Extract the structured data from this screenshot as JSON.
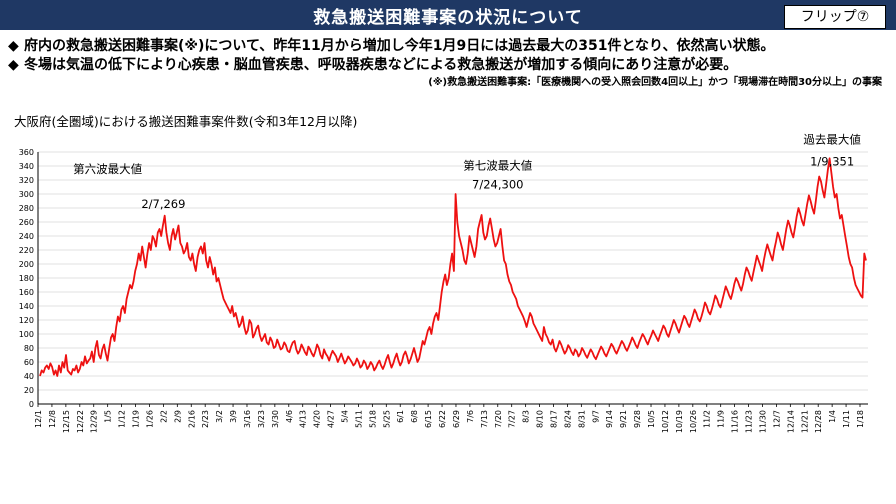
{
  "header": {
    "title": "救急搬送困難事案の状況について",
    "flip_label": "フリップ⑦"
  },
  "bullets": [
    {
      "mark": "◆",
      "text": "府内の救急搬送困難事案(※)について、昨年11月から増加し今年1月9日には過去最大の351件となり、依然高い状態。"
    },
    {
      "mark": "◆",
      "text": "冬場は気温の低下により心疾患・脳血管疾患、呼吸器疾患などによる救急搬送が増加する傾向にあり注意が必要。"
    }
  ],
  "note": "(※)救急搬送困難事案:「医療機関への受入照会回数4回以上」かつ「現場滞在時間30分以上」の事案",
  "chart_data": {
    "type": "line",
    "title": "大阪府(全圏域)における搬送困難事案件数(令和3年12月以降)",
    "ylim": [
      0,
      360
    ],
    "yticks": [
      0,
      20,
      40,
      60,
      80,
      100,
      120,
      140,
      160,
      180,
      200,
      220,
      240,
      260,
      280,
      300,
      320,
      340,
      360
    ],
    "xticks": [
      "12/1",
      "12/8",
      "12/15",
      "12/22",
      "12/29",
      "1/5",
      "1/12",
      "1/19",
      "1/26",
      "2/2",
      "2/9",
      "2/16",
      "2/23",
      "3/2",
      "3/9",
      "3/16",
      "3/23",
      "3/30",
      "4/6",
      "4/13",
      "4/20",
      "4/27",
      "5/4",
      "5/11",
      "5/18",
      "5/25",
      "6/1",
      "6/8",
      "6/15",
      "6/22",
      "6/29",
      "7/6",
      "7/13",
      "7/20",
      "7/27",
      "8/3",
      "8/10",
      "8/17",
      "8/24",
      "8/31",
      "9/7",
      "9/14",
      "9/21",
      "9/28",
      "10/5",
      "10/12",
      "10/19",
      "10/26",
      "11/2",
      "11/9",
      "11/16",
      "11/23",
      "11/30",
      "12/7",
      "12/14",
      "12/21",
      "12/28",
      "1/4",
      "1/11",
      "1/18"
    ],
    "series": [
      {
        "color": "#ee1111",
        "values": [
          40,
          48,
          45,
          52,
          55,
          50,
          58,
          53,
          42,
          48,
          40,
          55,
          45,
          60,
          52,
          70,
          48,
          45,
          42,
          50,
          48,
          55,
          45,
          50,
          60,
          55,
          68,
          58,
          62,
          65,
          75,
          60,
          80,
          90,
          70,
          65,
          78,
          85,
          72,
          62,
          80,
          95,
          100,
          90,
          110,
          125,
          118,
          135,
          140,
          130,
          150,
          160,
          170,
          165,
          175,
          190,
          200,
          215,
          205,
          225,
          210,
          195,
          215,
          230,
          220,
          240,
          235,
          225,
          245,
          250,
          240,
          255,
          269,
          245,
          230,
          220,
          240,
          250,
          235,
          245,
          255,
          230,
          225,
          215,
          220,
          230,
          210,
          205,
          215,
          200,
          190,
          210,
          220,
          225,
          215,
          230,
          205,
          195,
          210,
          200,
          185,
          195,
          175,
          180,
          170,
          160,
          150,
          145,
          140,
          135,
          130,
          140,
          125,
          130,
          120,
          110,
          115,
          125,
          110,
          100,
          105,
          120,
          115,
          95,
          100,
          108,
          112,
          98,
          90,
          95,
          100,
          88,
          85,
          95,
          90,
          80,
          82,
          92,
          85,
          78,
          80,
          88,
          84,
          76,
          74,
          82,
          88,
          90,
          78,
          72,
          76,
          85,
          80,
          74,
          70,
          82,
          78,
          72,
          68,
          75,
          85,
          80,
          70,
          65,
          78,
          72,
          68,
          62,
          70,
          76,
          72,
          68,
          60,
          66,
          72,
          65,
          58,
          62,
          68,
          64,
          60,
          55,
          58,
          65,
          60,
          52,
          55,
          62,
          58,
          50,
          54,
          60,
          56,
          48,
          52,
          58,
          62,
          55,
          50,
          56,
          64,
          70,
          60,
          52,
          58,
          66,
          72,
          62,
          55,
          60,
          70,
          75,
          68,
          58,
          64,
          72,
          80,
          70,
          60,
          65,
          78,
          90,
          85,
          95,
          105,
          110,
          100,
          115,
          125,
          130,
          120,
          140,
          160,
          175,
          185,
          170,
          180,
          200,
          215,
          190,
          300,
          260,
          240,
          230,
          220,
          205,
          200,
          215,
          240,
          230,
          220,
          210,
          225,
          250,
          260,
          270,
          245,
          235,
          240,
          255,
          265,
          250,
          235,
          225,
          230,
          240,
          250,
          225,
          205,
          200,
          185,
          175,
          170,
          160,
          155,
          150,
          140,
          135,
          130,
          125,
          118,
          110,
          120,
          130,
          125,
          115,
          110,
          105,
          100,
          95,
          90,
          110,
          100,
          95,
          88,
          85,
          92,
          80,
          75,
          82,
          90,
          85,
          78,
          72,
          76,
          84,
          80,
          74,
          70,
          78,
          75,
          68,
          72,
          80,
          76,
          70,
          66,
          72,
          78,
          74,
          68,
          64,
          70,
          76,
          82,
          78,
          72,
          68,
          74,
          80,
          86,
          82,
          76,
          72,
          78,
          84,
          90,
          86,
          80,
          76,
          82,
          88,
          95,
          90,
          84,
          80,
          88,
          94,
          100,
          96,
          90,
          85,
          92,
          98,
          105,
          100,
          95,
          90,
          98,
          105,
          112,
          108,
          100,
          96,
          104,
          112,
          120,
          115,
          108,
          102,
          110,
          118,
          126,
          122,
          115,
          110,
          118,
          126,
          135,
          130,
          122,
          118,
          125,
          134,
          145,
          140,
          132,
          128,
          136,
          145,
          155,
          150,
          142,
          138,
          148,
          158,
          168,
          162,
          155,
          150,
          160,
          172,
          180,
          175,
          168,
          162,
          172,
          185,
          195,
          190,
          182,
          176,
          188,
          200,
          212,
          205,
          198,
          190,
          205,
          218,
          228,
          220,
          212,
          205,
          220,
          232,
          245,
          238,
          228,
          220,
          235,
          250,
          262,
          255,
          245,
          238,
          252,
          268,
          280,
          272,
          262,
          255,
          270,
          285,
          298,
          290,
          280,
          272,
          290,
          310,
          325,
          318,
          305,
          295,
          315,
          335,
          351,
          330,
          310,
          295,
          300,
          280,
          265,
          270,
          255,
          240,
          225,
          210,
          200,
          195,
          180,
          170,
          165,
          160,
          155,
          152,
          215,
          205
        ]
      }
    ],
    "annotations": [
      {
        "text": "第六波最大値",
        "x_index": 5,
        "y": 330
      },
      {
        "text": "2/7,269",
        "x_index": 9,
        "y": 280
      },
      {
        "text": "第七波最大値",
        "x_index": 33,
        "y": 335
      },
      {
        "text": "7/24,300",
        "x_index": 33,
        "y": 308
      },
      {
        "text": "過去最大値",
        "x_index": 57,
        "y": 372
      },
      {
        "text": "1/9,351",
        "x_index": 57,
        "y": 341
      }
    ]
  }
}
